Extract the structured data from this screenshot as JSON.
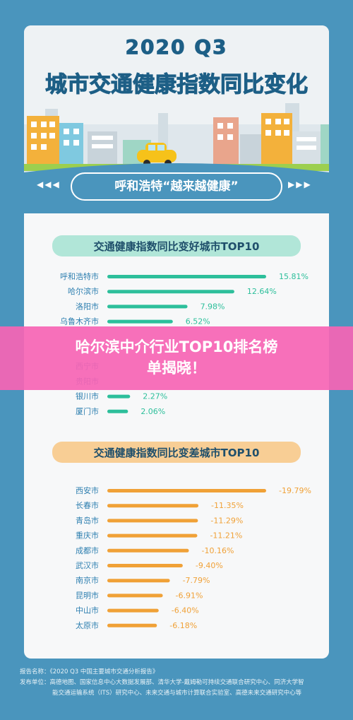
{
  "header": {
    "title_line1": "2020 Q3",
    "title_line2": "城市交通健康指数同比变化"
  },
  "highlight_pill": {
    "text": "呼和浩特“越来越健康”",
    "left_arrows": "◀◀◀",
    "right_arrows": "▶▶▶"
  },
  "banner": {
    "line1": "哈尔滨中介行业TOP10排名榜",
    "line2": "单揭晓！"
  },
  "colors": {
    "background": "#4a95bd",
    "improve_bar": "#2dbf9b",
    "improve_label": "#2dbf9b",
    "decline_bar": "#f0a137",
    "decline_label": "#f0a137",
    "improve_brush": "#a9e3d4",
    "decline_brush": "#f7c98a",
    "city_label_top": "#2e7fb0",
    "city_label_bottom": "#2e7fb0",
    "banner": "#f664b4"
  },
  "chart_data": [
    {
      "type": "bar",
      "orientation": "horizontal",
      "title": "交通健康指数同比变好城市TOP10",
      "categories": [
        "呼和浩特市",
        "哈尔滨市",
        "洛阳市",
        "乌鲁木齐市",
        "",
        "",
        "西宁市",
        "贵阳市",
        "银川市",
        "厦门市"
      ],
      "values": [
        15.81,
        12.64,
        7.98,
        6.52,
        null,
        null,
        null,
        null,
        2.27,
        2.06
      ],
      "value_labels": [
        "15.81%",
        "12.64%",
        "7.98%",
        "6.52%",
        "",
        "",
        "",
        "",
        "2.27%",
        "2.06%"
      ]
    },
    {
      "type": "bar",
      "orientation": "horizontal",
      "title": "交通健康指数同比变差城市TOP10",
      "categories": [
        "西安市",
        "长春市",
        "青岛市",
        "重庆市",
        "成都市",
        "武汉市",
        "南京市",
        "昆明市",
        "中山市",
        "太原市"
      ],
      "values": [
        -19.79,
        -11.35,
        -11.29,
        -11.21,
        -10.16,
        -9.4,
        -7.79,
        -6.91,
        -6.4,
        -6.18
      ],
      "value_labels": [
        "-19.79%",
        "-11.35%",
        "-11.29%",
        "-11.21%",
        "-10.16%",
        "-9.40%",
        "-7.79%",
        "-6.91%",
        "-6.40%",
        "-6.18%"
      ]
    }
  ],
  "footer": {
    "report_line": "报告名称：《2020 Q3 中国主要城市交通分析报告》",
    "publisher_line1": "发布单位：高德地图、国家信息中心大数据发展部、清华大学-戴姆勒可持续交通联合研究中心、同济大学智",
    "publisher_line2": "能交通运输系统（ITS）研究中心、未来交通与城市计算联合实验室、高德未来交通研究中心等"
  }
}
